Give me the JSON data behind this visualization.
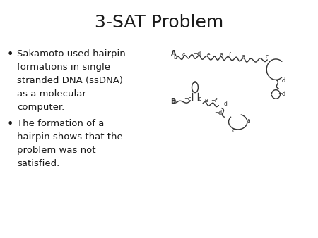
{
  "title": "3-SAT Problem",
  "title_fontsize": 18,
  "background_color": "#ffffff",
  "bullet1_lines": [
    "Sakamoto used hairpin",
    "formations in single",
    "stranded DNA (ssDNA)",
    "as a molecular",
    "computer."
  ],
  "bullet2_lines": [
    "The formation of a",
    "hairpin shows that the",
    "problem was not",
    "satisfied."
  ],
  "text_fontsize": 9.5,
  "text_color": "#1a1a1a",
  "diagram_color": "#333333"
}
